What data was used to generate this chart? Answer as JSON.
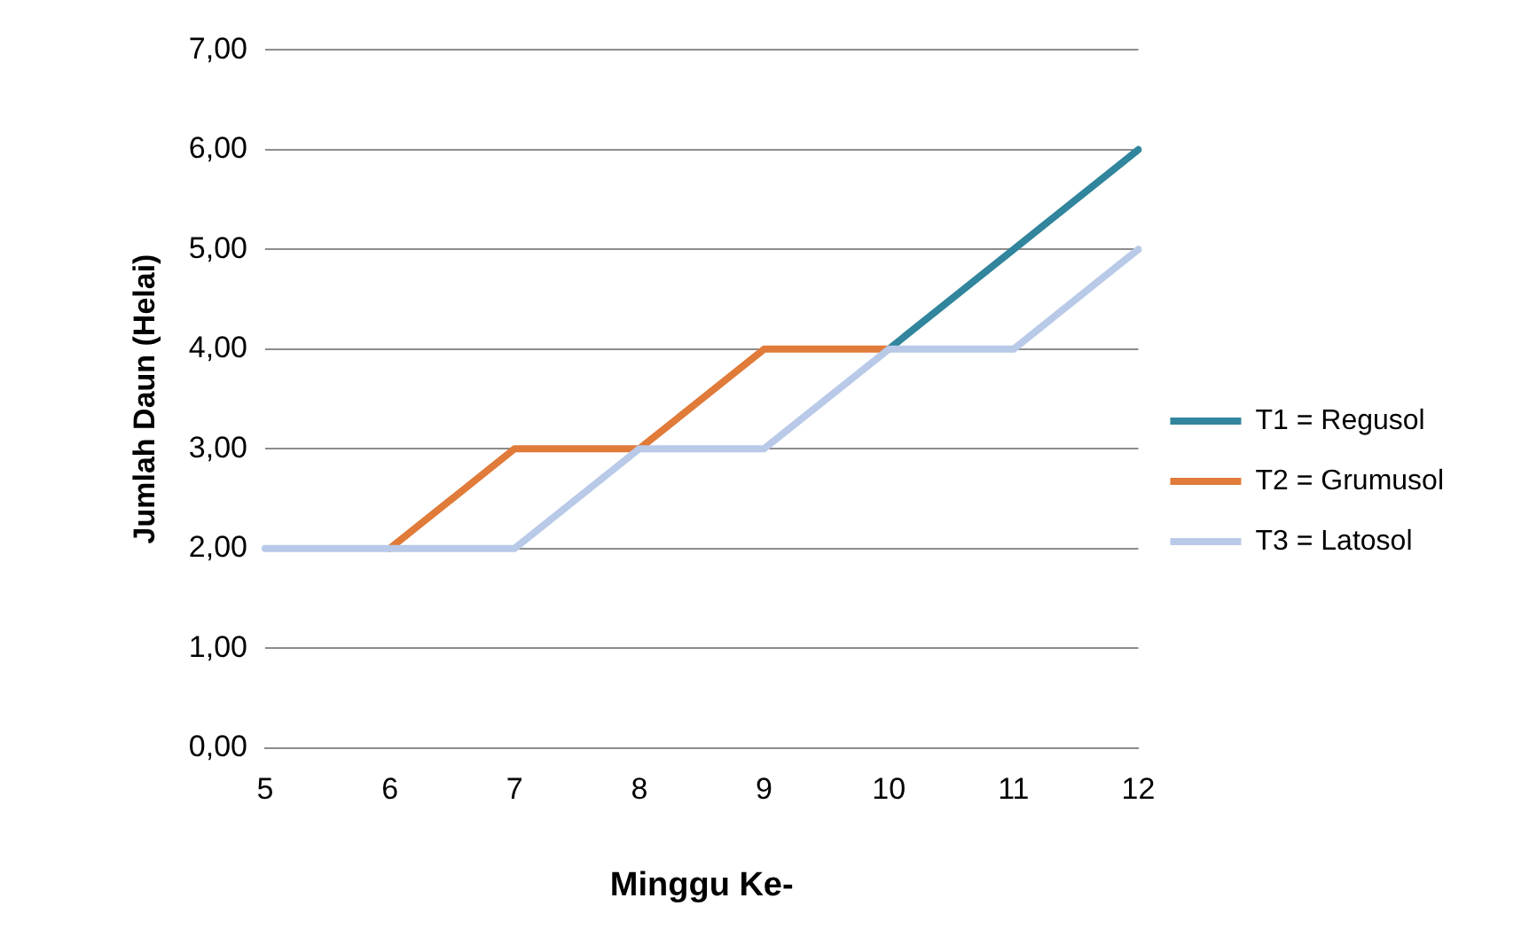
{
  "chart_data": {
    "type": "line",
    "xlabel": "Minggu Ke-",
    "ylabel": "Jumlah Daun (Helai)",
    "categories": [
      "5",
      "6",
      "7",
      "8",
      "9",
      "10",
      "11",
      "12"
    ],
    "series": [
      {
        "name": "T1 = Regusol",
        "color": "#31859c",
        "values": [
          null,
          null,
          null,
          null,
          null,
          4,
          5,
          6
        ]
      },
      {
        "name": "T2 = Grumusol",
        "color": "#e07b39",
        "values": [
          null,
          2,
          3,
          3,
          4,
          4,
          null,
          null
        ]
      },
      {
        "name": "T3 = Latosol",
        "color": "#b9c9e8",
        "values": [
          2,
          2,
          2,
          3,
          3,
          4,
          4,
          5
        ]
      }
    ],
    "ylim": [
      0,
      7
    ],
    "yticks": [
      {
        "value": 0,
        "label": "0,00"
      },
      {
        "value": 1,
        "label": "1,00"
      },
      {
        "value": 2,
        "label": "2,00"
      },
      {
        "value": 3,
        "label": "3,00"
      },
      {
        "value": 4,
        "label": "4,00"
      },
      {
        "value": 5,
        "label": "5,00"
      },
      {
        "value": 6,
        "label": "6,00"
      },
      {
        "value": 7,
        "label": "7,00"
      }
    ],
    "grid": "y",
    "legend": "right",
    "marker": "none",
    "line_style": "solid"
  }
}
